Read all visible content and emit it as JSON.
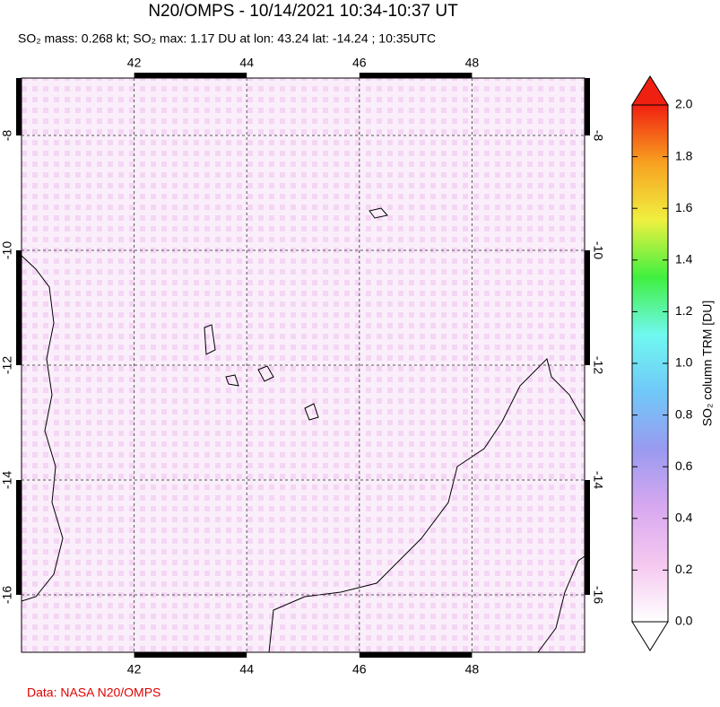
{
  "chart_data": {
    "type": "map",
    "title": "N20/OMPS - 10/14/2021 10:34-10:37 UT",
    "subtitle": "SO₂ mass: 0.268 kt; SO₂ max: 1.17 DU at lon: 43.24 lat: -14.24 ; 10:35UTC",
    "xlim": [
      40,
      50
    ],
    "xticks": [
      42,
      44,
      46,
      48
    ],
    "ylim": [
      -17,
      -7
    ],
    "yticks": [
      -8,
      -10,
      -12,
      -14,
      -16
    ],
    "grid": true,
    "colorbar": {
      "label": "SO₂ column TRM [DU]",
      "lim": [
        0,
        2
      ],
      "ticks": [
        {
          "value": 0,
          "label": "0.0"
        },
        {
          "value": 0.2,
          "label": "0.2"
        },
        {
          "value": 0.4,
          "label": "0.4"
        },
        {
          "value": 0.6,
          "label": "0.6"
        },
        {
          "value": 0.8,
          "label": "0.8"
        },
        {
          "value": 1.0,
          "label": "1.0"
        },
        {
          "value": 1.2,
          "label": "1.2"
        },
        {
          "value": 1.4,
          "label": "1.4"
        },
        {
          "value": 1.6,
          "label": "1.6"
        },
        {
          "value": 1.8,
          "label": "1.8"
        },
        {
          "value": 2.0,
          "label": "2.0"
        }
      ],
      "colors": [
        "#ffffff",
        "#f5c8f0",
        "#d8a8f0",
        "#9a9af0",
        "#70c8f8",
        "#70f8f0",
        "#40f040",
        "#f0f040",
        "#f8a020",
        "#f02010"
      ]
    },
    "credit": "Data: NASA N20/OMPS"
  }
}
